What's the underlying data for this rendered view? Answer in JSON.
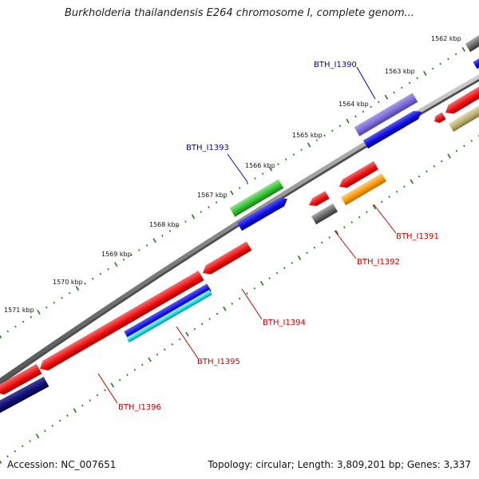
{
  "title": "Burkholderia thailandensis E264 chromosome I, complete genom...",
  "footer": {
    "accession": "Accession: NC_007651",
    "summary": "Topology: circular; Length: 3,809,201 bp; Genes: 3,337"
  },
  "ticks": [
    "1562 kbp",
    "1563 kbp",
    "1564 kbp",
    "1565 kbp",
    "1566 kbp",
    "1567 kbp",
    "1568 kbp",
    "1569 kbp",
    "1570 kbp",
    "1571 kbp"
  ],
  "gene_labels": [
    {
      "id": "gene-label-bth-i1390",
      "text": "BTH_I1390",
      "color": "#0000cc"
    },
    {
      "id": "gene-label-bth-i1393",
      "text": "BTH_I1393",
      "color": "#0000cc"
    },
    {
      "id": "gene-label-bth-i1391",
      "text": "BTH_I1391",
      "color": "#cc0000"
    },
    {
      "id": "gene-label-bth-i1392",
      "text": "BTH_I1392",
      "color": "#cc0000"
    },
    {
      "id": "gene-label-bth-i1394",
      "text": "BTH_I1394",
      "color": "#cc0000"
    },
    {
      "id": "gene-label-bth-i1395",
      "text": "BTH_I1395",
      "color": "#cc0000"
    },
    {
      "id": "gene-label-bth-i1396",
      "text": "BTH_I1396",
      "color": "#cc0000"
    }
  ],
  "colors": {
    "backbone": "#8a8a8a",
    "tick_dots": "#1f7a1f",
    "red_gene": "#ee1111",
    "blue_gene": "#1010dd",
    "navy_gene": "#101070",
    "purple_gene": "#7b6bd6",
    "green_gene": "#33c033",
    "orange_gene": "#ff9a00",
    "gray_gene": "#666666",
    "cyan_gene": "#22dddd",
    "olive_gene": "#b9b070"
  }
}
